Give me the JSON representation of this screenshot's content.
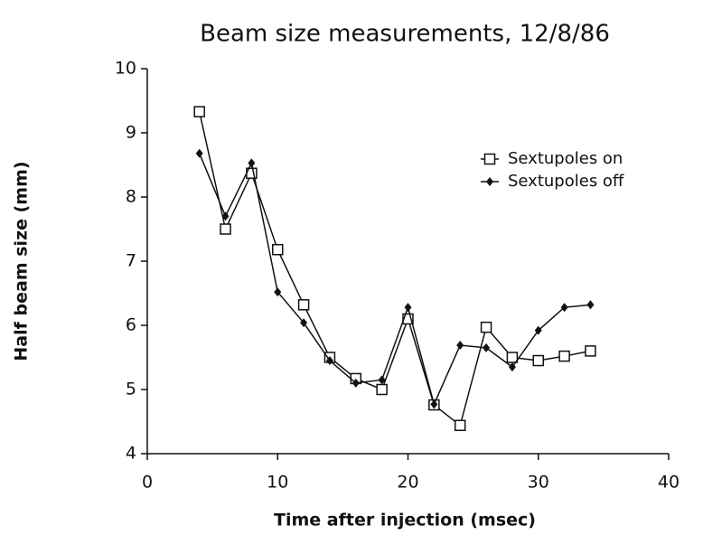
{
  "chart_data": {
    "type": "line",
    "title": "Beam size measurements, 12/8/86",
    "x_label": "Time after injection (msec)",
    "y_label": "Half beam size (mm)",
    "x": [
      4,
      6,
      8,
      10,
      12,
      14,
      16,
      18,
      20,
      22,
      24,
      26,
      28,
      30,
      32,
      34
    ],
    "series": [
      {
        "name": "Sextupoles on",
        "color": "#111111",
        "marker": "square",
        "values": [
          9.33,
          7.5,
          8.37,
          7.18,
          6.32,
          5.5,
          5.17,
          5.0,
          6.1,
          4.76,
          4.44,
          5.97,
          5.5,
          5.45,
          5.52,
          5.6
        ]
      },
      {
        "name": "Sextupoles off",
        "color": "#111111",
        "marker": "diamond",
        "values": [
          8.68,
          7.7,
          8.53,
          6.52,
          6.04,
          5.45,
          5.1,
          5.15,
          6.28,
          4.77,
          5.69,
          5.65,
          5.35,
          5.92,
          6.28,
          6.32
        ]
      }
    ],
    "xlim": [
      0,
      40
    ],
    "xticks": [
      0,
      10,
      20,
      30,
      40
    ],
    "ylim": [
      4,
      10
    ],
    "yticks": [
      4,
      5,
      6,
      7,
      8,
      9,
      10
    ],
    "grid": false,
    "legend": "upper right"
  }
}
